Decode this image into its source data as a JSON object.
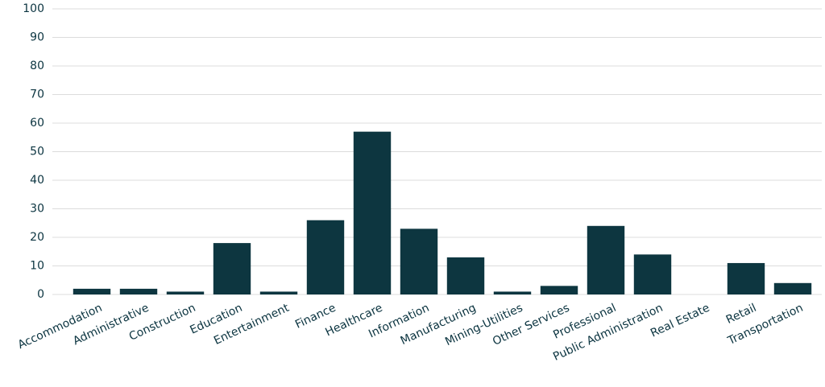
{
  "chart_data": {
    "type": "bar",
    "categories": [
      "Accommodation",
      "Administrative",
      "Construction",
      "Education",
      "Entertainment",
      "Finance",
      "Healthcare",
      "Information",
      "Manufacturing",
      "Mining-Utilities",
      "Other Services",
      "Professional",
      "Public Administration",
      "Real Estate",
      "Retail",
      "Transportation"
    ],
    "values": [
      2,
      2,
      1,
      18,
      1,
      26,
      57,
      23,
      13,
      1,
      3,
      24,
      14,
      0,
      11,
      4
    ],
    "color": "#0d3640",
    "ylim": [
      0,
      100
    ],
    "yticks": [
      0,
      10,
      20,
      30,
      40,
      50,
      60,
      70,
      80,
      90,
      100
    ],
    "grid": true
  }
}
